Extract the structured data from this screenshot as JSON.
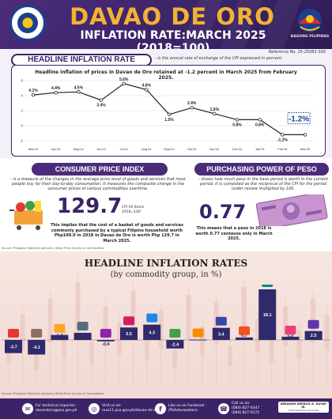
{
  "header": {
    "title": "DAVAO DE ORO",
    "subtitle": "INFLATION RATE:MARCH 2025 (2018=100)",
    "bagong_pilipinas": "BAGONG PILIPINAS",
    "reference": "Reference No. 25-25082-026"
  },
  "headline": {
    "pill": "HEADLINE INFLATION RATE",
    "definition": "- is the annual rate of exchange of the CPI expressed in percent.",
    "chart_title": "Headline inflation of prices in Davao de Oro retained at -1.2 percent in March 2025 from February 2025.",
    "highlight": "-1.2%"
  },
  "chart_data": [
    {
      "type": "line",
      "title": "Headline inflation of prices in Davao de Oro retained at -1.2 percent in March 2025 from February 2025.",
      "categories": [
        "Mar'24",
        "Apr'24",
        "May'24",
        "Jun'24",
        "Jul'24",
        "Aug'24",
        "Sept'24",
        "Oct'24",
        "Nov'24",
        "Dec'24",
        "Jan'25",
        "Feb'25",
        "Mar'25"
      ],
      "values": [
        4.1,
        4.4,
        4.5,
        3.4,
        5.6,
        4.8,
        1.5,
        2.4,
        1.6,
        0.8,
        0.8,
        -1.2,
        -1.2
      ],
      "value_labels": [
        "4.1%",
        "4.4%",
        "4.5%",
        "3.4%",
        "5.6%",
        "4.8%",
        "1.5%",
        "2.4%",
        "1.6%",
        "0.8%",
        "0.8%",
        "-1.2%",
        ""
      ],
      "yticks": [
        -2,
        0,
        2,
        4,
        6
      ],
      "ylim": [
        -2,
        6
      ],
      "grid": true,
      "color": "#222222"
    },
    {
      "type": "bar",
      "title": "HEADLINE INFLATION RATES",
      "subtitle": "(by commodity group, in %)",
      "values": [
        -3.7,
        -4.1,
        1.4,
        2.0,
        -0.4,
        3.5,
        4.3,
        -2.4,
        0.1,
        3.4,
        0.7,
        18.1,
        0.9,
        2.5
      ],
      "value_labels": [
        "-3.7",
        "-4.1",
        "1.4",
        "2.0",
        "-0.4",
        "3.5",
        "4.3",
        "-2.4",
        "0.1",
        "3.4",
        "0.7",
        "18.1",
        "0.9",
        "2.5"
      ],
      "icons": [
        "food-icon",
        "beverage-icon",
        "clothing-icon",
        "house-icon",
        "furnishing-icon",
        "health-icon",
        "transport-icon",
        "communication-icon",
        "recreation-icon",
        "education-icon",
        "restaurant-icon",
        "insurance-icon",
        "personal-care-icon",
        "other-services-icon"
      ],
      "bar_color": "#2f2a6b"
    }
  ],
  "cpi": {
    "pill": "CONSUMER PRICE INDEX",
    "definition": "- is a measure of the changes in the average price level of goods and services that most people buy for their day-to-day consumption. It measures the composite change in the consumer prices of various commodities overtime.",
    "value": "129.7",
    "side_label_1": "CPI All Items",
    "side_label_2": "2018=100",
    "note": "This implies that the cost of a basket of goods and services commonly purchased by a typical Filipino household worth Php100.0 in 2018 in Davao de Oro is worth Php 129.7 in March 2025."
  },
  "ppp": {
    "pill": "PURCHASING POWER OF PESO",
    "definition": "- shows how much peso in the base period is worth in the current period. It is computed as the reciprocal of the CPI for the period under review multiplied by 100.",
    "value": "0.77",
    "note": "This means that a peso in 2018 is worth 0.77 centavos only in March 2025."
  },
  "sources": {
    "mid": "Source: Philippine Statistics Authority, Retail Price Survey of Commodities",
    "bottom": "Source: Philippine Statistics Authority, Retail Price Survey of Commodities"
  },
  "footer": {
    "tech_label": "For technical inquiries:",
    "tech_value": "dasandoro@psa.gov.ph",
    "visit_label": "Visit us on:",
    "visit_value": "rsso11.psa.gov.ph/davao-de-oro",
    "fb_label": "Like us on Facebook:",
    "fb_value": "/PSAdavaodeoro",
    "call_label": "Call us on:",
    "call_1": "(084) 827-0347",
    "call_2": "(084) 827-0172",
    "sign_name": "ABRAHAM DERRICK A. DUYAP, JR.",
    "sign_role": "Chief Statistical Specialist"
  }
}
